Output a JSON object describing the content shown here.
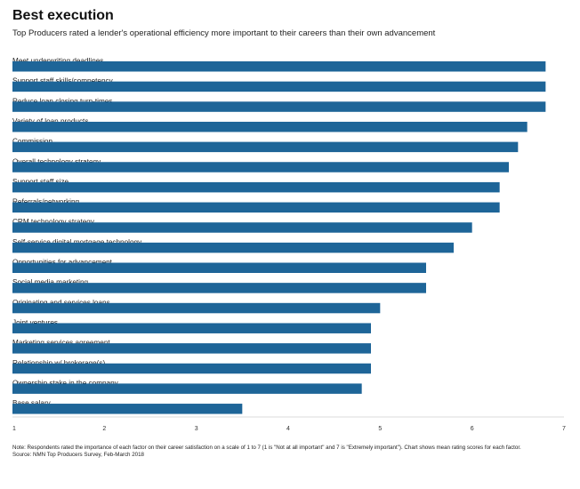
{
  "chart_data": {
    "type": "bar",
    "orientation": "horizontal",
    "title": "Best execution",
    "subtitle": "Top Producers rated a lender's operational efficiency more important to their careers than their own advancement",
    "categories": [
      "Meet underwriting deadlines",
      "Support staff skills/competency",
      "Reduce loan closing turn-times",
      "Variety of loan products",
      "Commission",
      "Overall technology strategy",
      "Support staff size",
      "Referrals/networking",
      "CRM technology strategy",
      "Self-service digital mortgage technology",
      "Opportunities for advancement",
      "Social media marketing",
      "Originating and services loans",
      "Joint ventures",
      "Marketing services agreement",
      "Relationship w/ brokerage(s)",
      "Ownership stake in the company",
      "Base salary"
    ],
    "values": [
      6.8,
      6.8,
      6.8,
      6.6,
      6.5,
      6.4,
      6.3,
      6.3,
      6.0,
      5.8,
      5.5,
      5.5,
      5.0,
      4.9,
      4.9,
      4.9,
      4.8,
      3.5
    ],
    "xlim": [
      1,
      7
    ],
    "xticks": [
      "1",
      "2",
      "3",
      "4",
      "5",
      "6",
      "7"
    ],
    "xlabel": "",
    "ylabel": "",
    "bar_color": "#1e6598",
    "grid": false,
    "legend": "none"
  },
  "notes": {
    "line1": "Note: Respondents rated the importance of each factor on their career satisfaction on a scale of 1 to 7 (1 is \"Not at all important\" and 7 is \"Extremely important\"). Chart shows mean rating scores for each factor.",
    "line2": "Source: NMN Top Producers Survey, Feb-March 2018"
  }
}
